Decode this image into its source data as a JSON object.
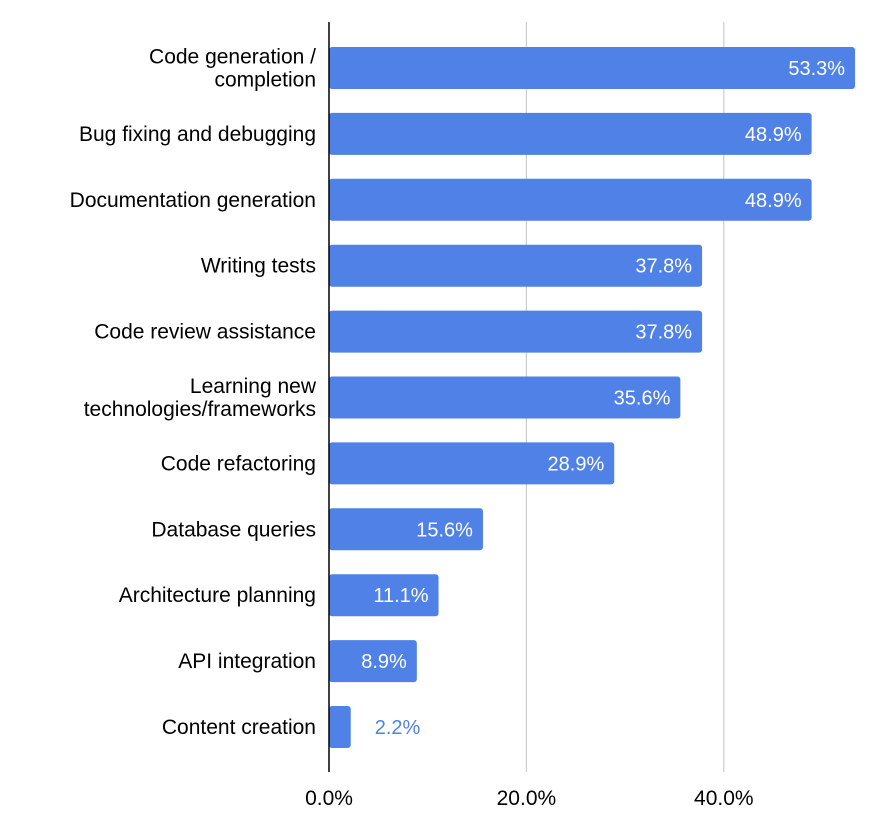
{
  "chart_data": {
    "type": "bar",
    "orientation": "horizontal",
    "title": "",
    "xlabel": "",
    "ylabel": "",
    "categories": [
      "Code generation / completion",
      "Bug fixing and debugging",
      "Documentation generation",
      "Writing tests",
      "Code review assistance",
      "Learning new technologies/frameworks",
      "Code refactoring",
      "Database queries",
      "Architecture planning",
      "API integration",
      "Content creation"
    ],
    "category_lines": [
      [
        "Code generation /",
        "completion"
      ],
      [
        "Bug fixing and debugging"
      ],
      [
        "Documentation generation"
      ],
      [
        "Writing tests"
      ],
      [
        "Code review assistance"
      ],
      [
        "Learning new",
        "technologies/frameworks"
      ],
      [
        "Code refactoring"
      ],
      [
        "Database queries"
      ],
      [
        "Architecture planning"
      ],
      [
        "API integration"
      ],
      [
        "Content creation"
      ]
    ],
    "values": [
      53.3,
      48.9,
      48.9,
      37.8,
      37.8,
      35.6,
      28.9,
      15.6,
      11.1,
      8.9,
      2.2
    ],
    "data_labels": [
      "53.3%",
      "48.9%",
      "48.9%",
      "37.8%",
      "37.8%",
      "35.6%",
      "28.9%",
      "15.6%",
      "11.1%",
      "8.9%",
      "2.2%"
    ],
    "xlim": [
      0,
      55
    ],
    "x_ticks": [
      0,
      20,
      40
    ],
    "x_tick_labels": [
      "0.0%",
      "20.0%",
      "40.0%"
    ],
    "grid": true,
    "legend": "none",
    "colors": {
      "bar": "#4f81e6",
      "label_inside": "#ffffff",
      "label_outside": "#4f81e6",
      "gridline": "#cccccc",
      "axis": "#000000"
    }
  }
}
